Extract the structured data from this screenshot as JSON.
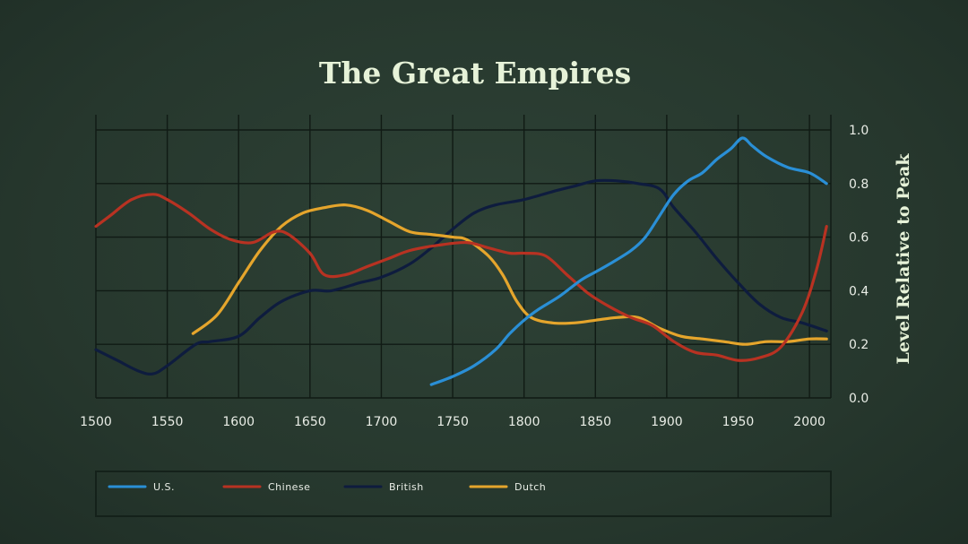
{
  "chart_data": {
    "type": "line",
    "title": "The Great Empires",
    "xlabel": "",
    "ylabel": "Level Relative to Peak",
    "xlim": [
      1500,
      2015
    ],
    "ylim": [
      0,
      1.0
    ],
    "x_ticks": [
      "1500",
      "1550",
      "1600",
      "1650",
      "1700",
      "1750",
      "1800",
      "1850",
      "1900",
      "1950",
      "2000"
    ],
    "y_ticks": [
      "0.0",
      "0.2",
      "0.4",
      "0.6",
      "0.8",
      "1.0"
    ],
    "grid": true,
    "legend_position": "bottom",
    "series": [
      {
        "name": "U.S.",
        "color": "#2a8fd6",
        "x": [
          1735,
          1750,
          1765,
          1780,
          1790,
          1800,
          1810,
          1825,
          1840,
          1850,
          1860,
          1875,
          1885,
          1895,
          1905,
          1915,
          1925,
          1935,
          1945,
          1953,
          1960,
          1970,
          1985,
          2000,
          2012
        ],
        "y": [
          0.05,
          0.08,
          0.12,
          0.18,
          0.24,
          0.29,
          0.33,
          0.38,
          0.44,
          0.47,
          0.5,
          0.55,
          0.6,
          0.68,
          0.76,
          0.81,
          0.84,
          0.89,
          0.93,
          0.97,
          0.94,
          0.9,
          0.86,
          0.84,
          0.8
        ]
      },
      {
        "name": "Chinese",
        "color": "#b83222",
        "x": [
          1500,
          1510,
          1525,
          1540,
          1550,
          1565,
          1580,
          1595,
          1610,
          1625,
          1635,
          1650,
          1660,
          1675,
          1690,
          1705,
          1720,
          1740,
          1760,
          1775,
          1790,
          1800,
          1815,
          1830,
          1845,
          1860,
          1875,
          1890,
          1905,
          1920,
          1935,
          1950,
          1965,
          1980,
          1995,
          2005,
          2012
        ],
        "y": [
          0.64,
          0.68,
          0.74,
          0.76,
          0.74,
          0.69,
          0.63,
          0.59,
          0.58,
          0.62,
          0.61,
          0.54,
          0.46,
          0.46,
          0.49,
          0.52,
          0.55,
          0.57,
          0.58,
          0.56,
          0.54,
          0.54,
          0.53,
          0.46,
          0.39,
          0.34,
          0.3,
          0.27,
          0.21,
          0.17,
          0.16,
          0.14,
          0.15,
          0.19,
          0.32,
          0.48,
          0.64
        ]
      },
      {
        "name": "British",
        "color": "#0e1c3e",
        "x": [
          1500,
          1515,
          1530,
          1540,
          1550,
          1570,
          1580,
          1600,
          1615,
          1630,
          1650,
          1665,
          1685,
          1700,
          1720,
          1735,
          1750,
          1765,
          1780,
          1800,
          1820,
          1835,
          1850,
          1865,
          1880,
          1895,
          1905,
          1920,
          1935,
          1950,
          1965,
          1980,
          1995,
          2012
        ],
        "y": [
          0.18,
          0.14,
          0.1,
          0.09,
          0.12,
          0.2,
          0.21,
          0.23,
          0.3,
          0.36,
          0.4,
          0.4,
          0.43,
          0.45,
          0.5,
          0.56,
          0.63,
          0.69,
          0.72,
          0.74,
          0.77,
          0.79,
          0.81,
          0.81,
          0.8,
          0.78,
          0.71,
          0.62,
          0.52,
          0.43,
          0.35,
          0.3,
          0.28,
          0.25
        ]
      },
      {
        "name": "Dutch",
        "color": "#e5a52c",
        "x": [
          1568,
          1585,
          1600,
          1615,
          1630,
          1645,
          1660,
          1675,
          1690,
          1705,
          1720,
          1735,
          1750,
          1760,
          1775,
          1785,
          1795,
          1805,
          1820,
          1835,
          1850,
          1865,
          1880,
          1895,
          1910,
          1925,
          1940,
          1955,
          1970,
          1985,
          2000,
          2012
        ],
        "y": [
          0.24,
          0.31,
          0.43,
          0.55,
          0.64,
          0.69,
          0.71,
          0.72,
          0.7,
          0.66,
          0.62,
          0.61,
          0.6,
          0.59,
          0.53,
          0.46,
          0.36,
          0.3,
          0.28,
          0.28,
          0.29,
          0.3,
          0.3,
          0.26,
          0.23,
          0.22,
          0.21,
          0.2,
          0.21,
          0.21,
          0.22,
          0.22
        ]
      }
    ]
  }
}
